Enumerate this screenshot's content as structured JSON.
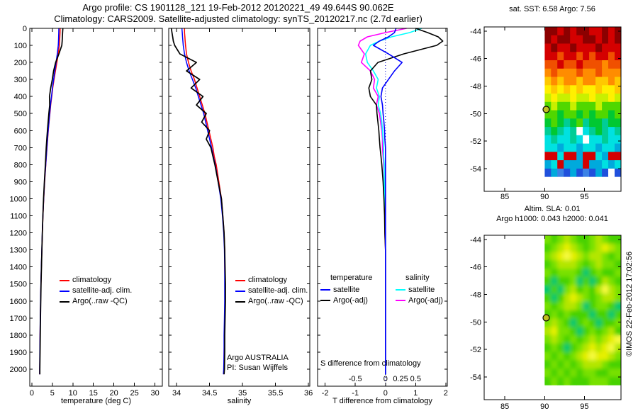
{
  "header": {
    "line1": "Argo profile: CS 1901128_121 19-Feb-2012 20120221_49 49.644S 90.062E",
    "line2": "Climatology: CARS2009. Satellite-adjusted climatology: synTS_20120217.nc (2.7d earlier)"
  },
  "watermark": "©IMOS 22-Feb-2012 17:02:56",
  "chart_data": [
    {
      "type": "line",
      "name": "temperature-profile",
      "xlabel": "temperature (deg C)",
      "xlim": [
        -0.5,
        31.8
      ],
      "xticks": [
        0,
        5,
        10,
        15,
        20,
        25,
        30
      ],
      "ylim": [
        0,
        2100
      ],
      "yticks": [
        0,
        100,
        200,
        300,
        400,
        500,
        600,
        700,
        800,
        900,
        1000,
        1100,
        1200,
        1300,
        1400,
        1500,
        1600,
        1700,
        1800,
        1900,
        2000
      ],
      "show_ytick_labels": true,
      "depths": [
        0,
        25,
        50,
        75,
        100,
        150,
        200,
        250,
        300,
        350,
        400,
        450,
        500,
        550,
        600,
        650,
        700,
        750,
        800,
        900,
        1000,
        1100,
        1200,
        1300,
        1400,
        1500,
        1600,
        1700,
        1800,
        1900,
        2000,
        2030
      ],
      "series": [
        {
          "name": "climatology",
          "color": "#ff0000",
          "width": 1.5,
          "values": [
            6.9,
            6.87,
            6.83,
            6.78,
            6.7,
            6.45,
            6.1,
            5.75,
            5.4,
            5.1,
            4.85,
            4.6,
            4.4,
            4.2,
            4.0,
            3.85,
            3.7,
            3.55,
            3.4,
            3.12,
            2.9,
            2.72,
            2.57,
            2.45,
            2.33,
            2.23,
            2.14,
            2.07,
            2.01,
            1.97,
            1.93,
            1.92
          ]
        },
        {
          "name": "satellite-adj-clim",
          "color": "#0000ff",
          "width": 1.5,
          "values": [
            6.58,
            6.56,
            6.53,
            6.5,
            6.44,
            6.2,
            5.9,
            5.6,
            5.3,
            5.02,
            4.78,
            4.55,
            4.35,
            4.16,
            3.97,
            3.82,
            3.67,
            3.52,
            3.38,
            3.1,
            2.88,
            2.7,
            2.55,
            2.44,
            2.32,
            2.22,
            2.13,
            2.06,
            2.0,
            1.96,
            1.92,
            1.91
          ]
        },
        {
          "name": "argo-raw",
          "color": "#000000",
          "width": 1.7,
          "values": [
            7.56,
            7.5,
            7.45,
            7.4,
            7.3,
            6.6,
            5.8,
            5.3,
            5.0,
            4.6,
            4.3,
            4.35,
            4.15,
            3.98,
            3.8,
            3.65,
            3.5,
            3.4,
            3.3,
            3.05,
            2.85,
            2.7,
            2.55,
            2.45,
            2.35,
            2.25,
            2.18,
            2.1,
            2.05,
            2.0,
            1.96,
            1.95
          ]
        }
      ],
      "legend": [
        {
          "label": "climatology",
          "color": "#ff0000"
        },
        {
          "label": "satellite-adj. clim.",
          "color": "#0000ff"
        },
        {
          "label": "Argo(..raw -QC)",
          "color": "#000000"
        }
      ]
    },
    {
      "type": "line",
      "name": "salinity-profile",
      "xlabel": "salinity",
      "xlim": [
        33.88,
        36.02
      ],
      "xticks": [
        34,
        34.5,
        35,
        35.5,
        36
      ],
      "ylim": [
        0,
        2100
      ],
      "yticks": [
        0,
        100,
        200,
        300,
        400,
        500,
        600,
        700,
        800,
        900,
        1000,
        1100,
        1200,
        1300,
        1400,
        1500,
        1600,
        1700,
        1800,
        1900,
        2000
      ],
      "show_ytick_labels": false,
      "depths": [
        0,
        25,
        50,
        75,
        100,
        150,
        200,
        250,
        300,
        350,
        400,
        450,
        500,
        550,
        600,
        650,
        700,
        750,
        800,
        900,
        1000,
        1100,
        1200,
        1300,
        1400,
        1500,
        1600,
        1700,
        1800,
        1900,
        2000,
        2030
      ],
      "series": [
        {
          "name": "climatology",
          "color": "#ff0000",
          "width": 1.5,
          "values": [
            34.12,
            34.12,
            34.125,
            34.13,
            34.135,
            34.15,
            34.18,
            34.22,
            34.27,
            34.31,
            34.35,
            34.39,
            34.43,
            34.46,
            34.49,
            34.52,
            34.55,
            34.57,
            34.6,
            34.64,
            34.68,
            34.7,
            34.72,
            34.73,
            34.73,
            34.735,
            34.735,
            34.73,
            34.725,
            34.72,
            34.72,
            34.715
          ]
        },
        {
          "name": "satellite-adj-clim",
          "color": "#0000ff",
          "width": 1.5,
          "values": [
            34.08,
            34.085,
            34.09,
            34.095,
            34.1,
            34.12,
            34.15,
            34.19,
            34.24,
            34.29,
            34.33,
            34.37,
            34.41,
            34.44,
            34.47,
            34.5,
            34.53,
            34.555,
            34.585,
            34.63,
            34.67,
            34.695,
            34.715,
            34.725,
            34.73,
            34.73,
            34.73,
            34.725,
            34.72,
            34.72,
            34.715,
            34.71
          ]
        },
        {
          "name": "argo-raw",
          "color": "#000000",
          "width": 1.7,
          "values": [
            33.92,
            33.93,
            33.94,
            33.95,
            33.97,
            34.05,
            34.3,
            34.15,
            34.35,
            34.22,
            34.4,
            34.3,
            34.45,
            34.38,
            34.5,
            34.45,
            34.52,
            34.55,
            34.58,
            34.63,
            34.68,
            34.7,
            34.72,
            34.73,
            34.735,
            34.74,
            34.74,
            34.735,
            34.73,
            34.73,
            34.725,
            34.72
          ]
        }
      ],
      "legend": [
        {
          "label": "climatology",
          "color": "#ff0000"
        },
        {
          "label": "satellite-adj. clim.",
          "color": "#0000ff"
        },
        {
          "label": "Argo(..raw -QC)",
          "color": "#000000"
        }
      ],
      "notes": [
        "Argo AUSTRALIA",
        "PI: Susan Wijffels"
      ]
    },
    {
      "type": "line",
      "name": "difference-profile",
      "xlabel": "T difference from climatology",
      "top_note": "S difference from climatology",
      "xlim": [
        -2.25,
        2.05
      ],
      "xticks": [
        -2,
        -1,
        0,
        1,
        2
      ],
      "s_ticks": {
        "labels": [
          "-0.5",
          "0",
          "0.25",
          "0.5"
        ],
        "t_positions": [
          -1,
          0,
          0.5,
          1
        ]
      },
      "s_scale": 2,
      "zero_line": true,
      "ylim": [
        0,
        2100
      ],
      "yticks": [
        0,
        100,
        200,
        300,
        400,
        500,
        600,
        700,
        800,
        900,
        1000,
        1100,
        1200,
        1300,
        1400,
        1500,
        1600,
        1700,
        1800,
        1900,
        2000
      ],
      "show_ytick_labels": false,
      "depths": [
        0,
        25,
        50,
        75,
        100,
        150,
        200,
        250,
        300,
        350,
        400,
        450,
        500,
        550,
        600,
        650,
        700,
        750,
        800,
        900,
        1000,
        1100,
        1200,
        1300,
        1400,
        1500,
        1600,
        1700,
        1800,
        1900,
        2000,
        2030
      ],
      "series": [
        {
          "name": "s-diff-argo",
          "color": "#ff00ff",
          "width": 1.6,
          "axis": "s",
          "values": [
            0.35,
            0.0,
            -0.3,
            -0.42,
            -0.45,
            -0.35,
            -0.4,
            -0.25,
            -0.18,
            -0.2,
            -0.12,
            -0.15,
            -0.1,
            -0.08,
            -0.06,
            -0.05,
            -0.05,
            -0.04,
            -0.03,
            -0.02,
            -0.02,
            -0.01,
            -0.01,
            0.0,
            0.0,
            0.0,
            0.0,
            0.0,
            0.0,
            0.0,
            0.0,
            0.0
          ]
        },
        {
          "name": "s-diff-satellite",
          "color": "#00ffff",
          "width": 1.6,
          "axis": "s",
          "values": [
            0.6,
            0.4,
            0.1,
            -0.1,
            -0.25,
            -0.33,
            -0.3,
            -0.2,
            -0.12,
            -0.15,
            -0.1,
            -0.12,
            -0.08,
            -0.06,
            -0.05,
            -0.04,
            -0.03,
            -0.03,
            -0.02,
            -0.02,
            -0.01,
            -0.01,
            0.0,
            0.0,
            0.0,
            0.0,
            0.0,
            0.0,
            0.0,
            0.0,
            0.0,
            0.0
          ]
        },
        {
          "name": "t-diff-argo",
          "color": "#000000",
          "width": 1.6,
          "axis": "t",
          "values": [
            1.0,
            1.4,
            1.75,
            1.9,
            1.7,
            0.6,
            -0.25,
            -0.5,
            -0.45,
            -0.55,
            -0.5,
            -0.3,
            -0.28,
            -0.25,
            -0.22,
            -0.2,
            -0.18,
            -0.15,
            -0.12,
            -0.08,
            -0.05,
            -0.03,
            -0.02,
            0.0,
            0.0,
            0.0,
            0.0,
            0.0,
            0.0,
            0.0,
            0.0,
            0.0
          ]
        },
        {
          "name": "t-diff-satellite",
          "color": "#0000ff",
          "width": 1.6,
          "axis": "t",
          "values": [
            0.35,
            0.3,
            0.1,
            -0.2,
            -0.4,
            0.1,
            0.55,
            0.3,
            0.1,
            -0.1,
            -0.15,
            -0.1,
            -0.08,
            -0.05,
            -0.03,
            -0.02,
            0.0,
            0.0,
            0.0,
            0.0,
            0.0,
            0.0,
            0.0,
            0.0,
            0.0,
            0.0,
            0.0,
            0.0,
            0.0,
            0.0,
            0.0,
            0.0
          ]
        }
      ],
      "legend_groups": [
        {
          "header": "temperature",
          "items": [
            {
              "label": "satellite",
              "color": "#0000ff"
            },
            {
              "label": "Argo(-adj)",
              "color": "#000000"
            }
          ]
        },
        {
          "header": "salinity",
          "items": [
            {
              "label": "satellite",
              "color": "#00ffff"
            },
            {
              "label": "Argo(-adj)",
              "color": "#ff00ff"
            }
          ]
        }
      ]
    },
    {
      "type": "heatmap",
      "name": "sst-map",
      "title": "sat. SST: 6.58 Argo: 7.56",
      "xlim": [
        82.4,
        99.6
      ],
      "ylim": [
        -55.65,
        -43.7
      ],
      "xticks": [
        85,
        90,
        95
      ],
      "yticks": [
        -44,
        -46,
        -48,
        -50,
        -52,
        -54
      ],
      "data_extent": {
        "lon": [
          90,
          99.6
        ],
        "lat": [
          -54.6,
          -43.7
        ]
      },
      "marker": {
        "lon": 90.2,
        "lat": -49.7,
        "fill": "#c0c020"
      },
      "smooth": false,
      "palette": {
        "a": "#8c0000",
        "b": "#d40000",
        "c": "#f05000",
        "d": "#ff8c00",
        "e": "#ffc800",
        "f": "#fff000",
        "g": "#c8f000",
        "h": "#50d700",
        "i": "#00c832",
        "j": "#00cd96",
        "k": "#00e1e1",
        "l": "#00aadc",
        "m": "#3c82e6",
        "n": "#2050dc",
        "o": "#1e1ee6",
        "w": "#ffffff"
      },
      "rows": [
        "aababaabbaba",
        "abaabbaababa",
        "babbabbbabbb",
        "bbcbbcbcbbcb",
        "ccbccbcccdcc",
        "dcdddcddcddd",
        "ededdeddeede",
        "fefefeffeffe",
        "gfggfggfggfg",
        "hghhghhhghhh",
        "hhihhihihhih",
        "ihijihjiijii",
        "jijkjwkjijkj",
        "kjkkjkwkkjkk",
        "kklkklkklkkl",
        "bbkbblbbklbb",
        "lkblllbllklk",
        "nlmnlnmnlnwn"
      ]
    },
    {
      "type": "heatmap",
      "name": "sla-map",
      "title_lines": [
        "Altim. SLA: 0.01",
        "Argo h1000: 0.043 h2000: 0.041"
      ],
      "xlim": [
        82.4,
        99.6
      ],
      "ylim": [
        -55.65,
        -43.7
      ],
      "xticks": [
        85,
        90,
        95
      ],
      "yticks": [
        -44,
        -46,
        -48,
        -50,
        -52,
        -54
      ],
      "data_extent": {
        "lon": [
          90,
          99.6
        ],
        "lat": [
          -54.6,
          -43.7
        ]
      },
      "marker": {
        "lon": 90.2,
        "lat": -49.7,
        "fill": "#c0c020"
      },
      "smooth": true,
      "palette": {
        "p": "#46d200",
        "q": "#78e100",
        "s": "#b4e600",
        "u": "#e6f000",
        "v": "#f5fa3c",
        "x": "#00c86e"
      },
      "rows": [
        "qpqsqppqsqpp",
        "pqsusqpqsusq",
        "qsuvusqssqpq",
        "pqsssqpqsqqp",
        "qpqqqpxpqppq",
        "pxppqxpxpsqp",
        "xpxqspqpsvsq",
        "pxpsusqpqssq",
        "qpqssqxpqqpx",
        "pqpqpppxppxp",
        "qsqpxpqpxppq",
        "suqqpxpqpqsp",
        "qsqpqpqsqsuv",
        "pqpxpqsusuvs",
        "qpqpqsuvuusq",
        "pqpqpqsssqpp",
        "qpqpqpqqppqq",
        "pqpqpppqqqpp"
      ]
    }
  ]
}
